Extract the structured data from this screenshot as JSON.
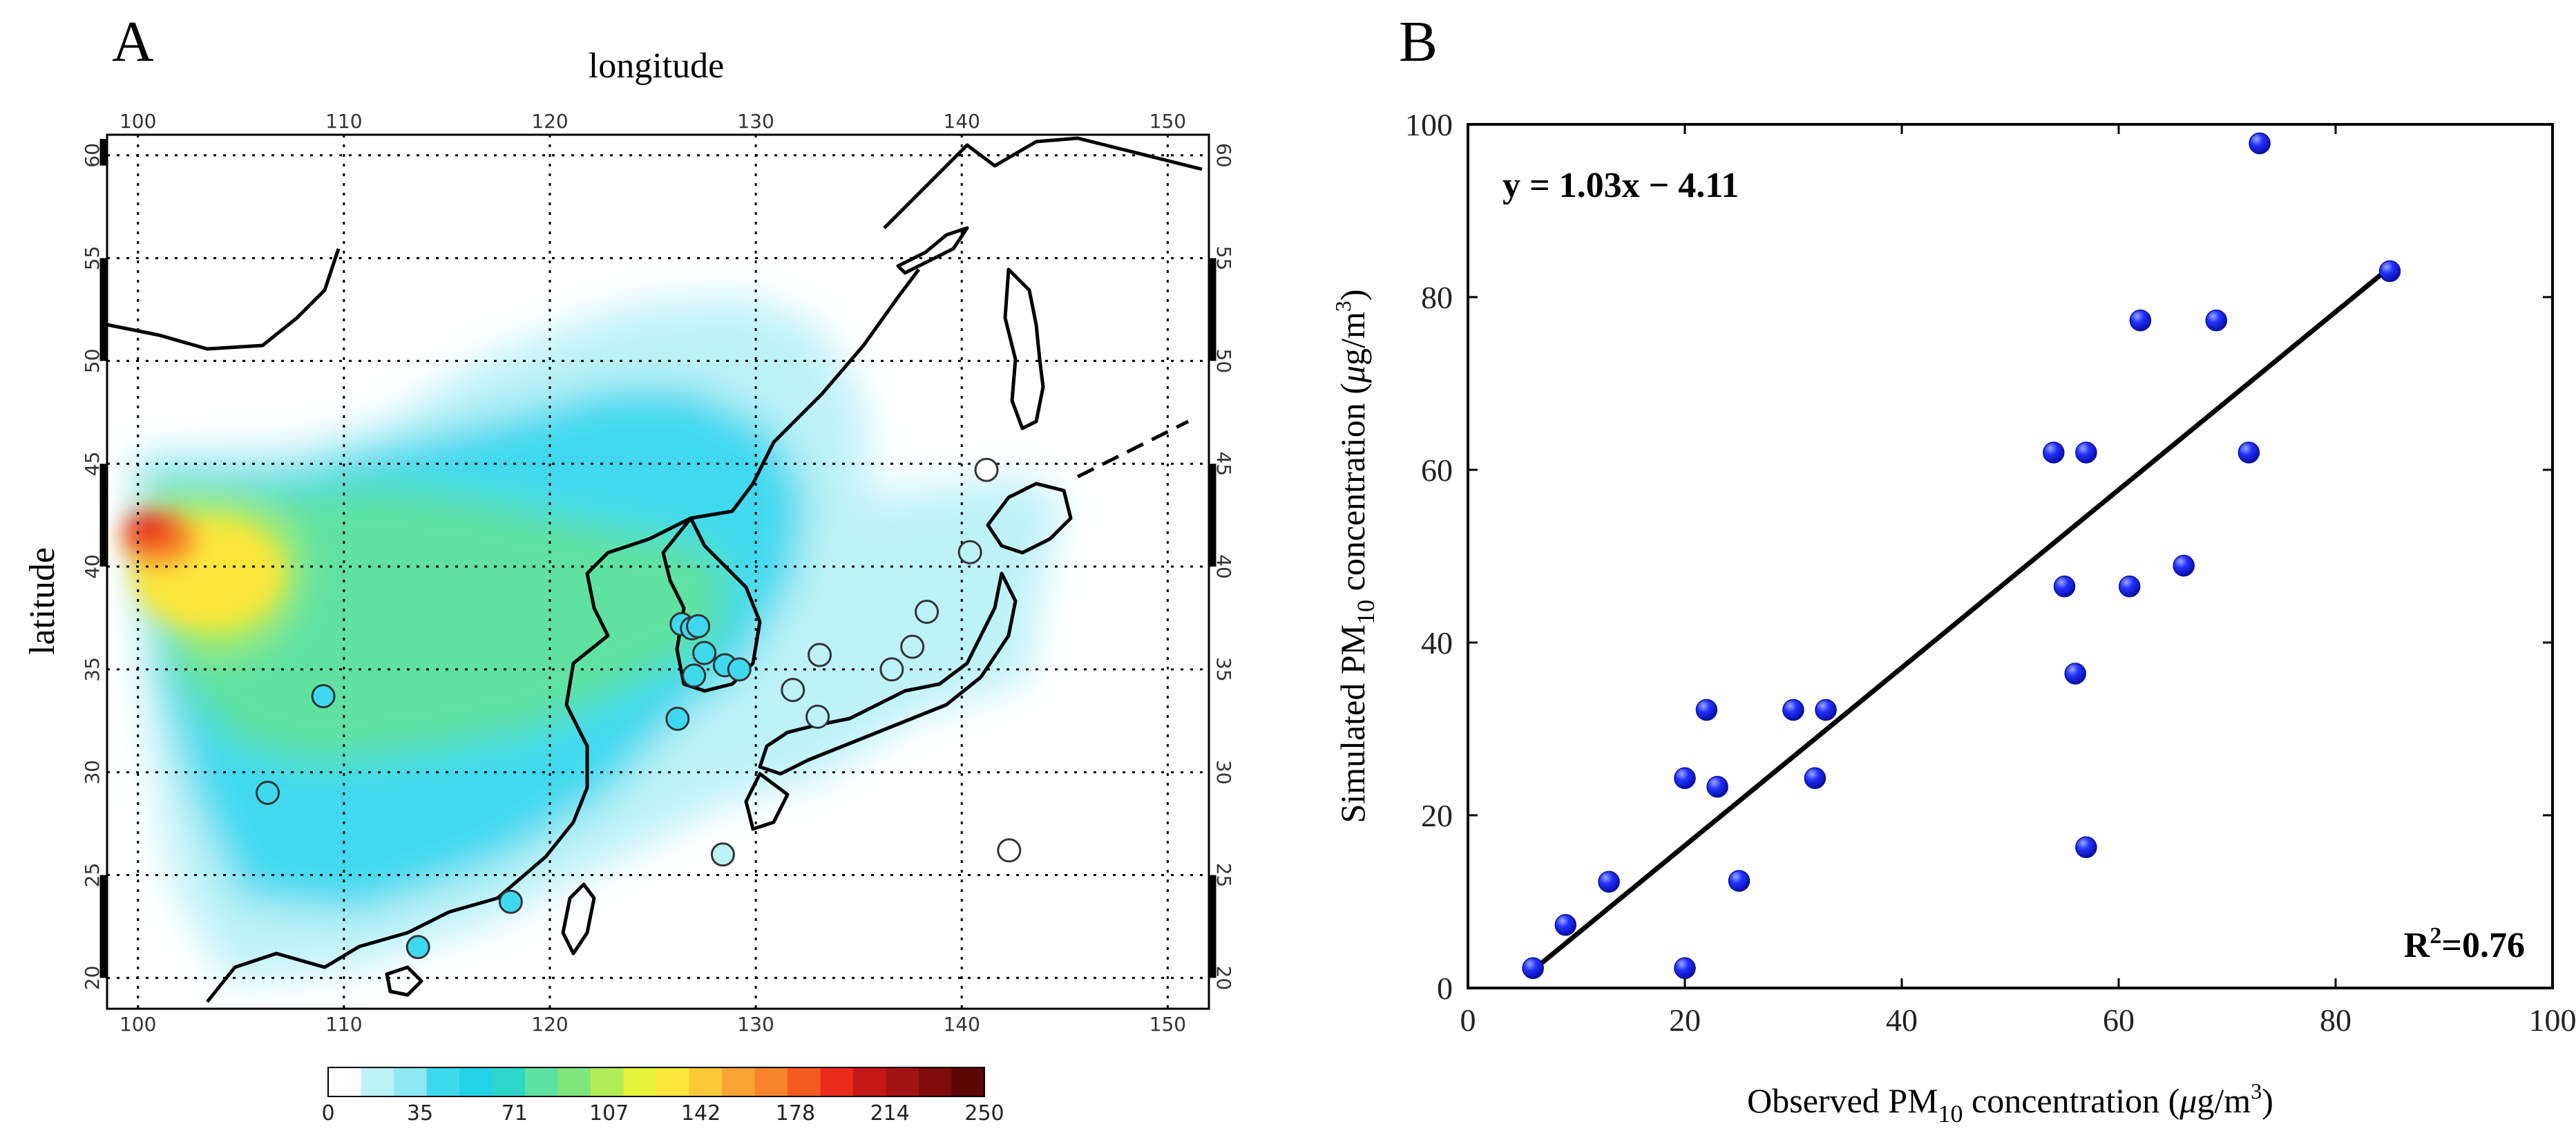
{
  "panel_a": {
    "label": "A",
    "top_axis_label": "longitude",
    "left_axis_label": "latitude",
    "lon_ticks": [
      "100",
      "110",
      "120",
      "130",
      "140",
      "150"
    ],
    "lat_ticks": [
      "20",
      "25",
      "30",
      "35",
      "40",
      "45",
      "50",
      "55",
      "60"
    ],
    "colorbar_ticks": [
      "0",
      "35",
      "71",
      "107",
      "142",
      "178",
      "214",
      "250"
    ],
    "colorbar_colors": [
      "#ffffff",
      "#bdf2f7",
      "#8ee8f4",
      "#3fd9ef",
      "#22d3e8",
      "#2ed6c9",
      "#5ee2a1",
      "#80e67c",
      "#b1ee57",
      "#e4f23a",
      "#fbe53a",
      "#fbc93a",
      "#f9a334",
      "#f7832b",
      "#f25a22",
      "#ea2b1c",
      "#c51717",
      "#a31212",
      "#7f0b0b",
      "#5c0606"
    ]
  },
  "panel_b": {
    "label": "B"
  },
  "chart_data": [
    {
      "type": "map",
      "title": "",
      "xlabel": "longitude",
      "ylabel": "latitude",
      "xlim": [
        98.5,
        152
      ],
      "ylim": [
        18.5,
        61
      ],
      "colorbar": {
        "min": 0,
        "max": 250,
        "ticks": [
          0,
          35,
          71,
          107,
          142,
          178,
          214,
          250
        ]
      },
      "stations": [
        {
          "lon": 109,
          "lat": 33.7,
          "fill": "#3fd9ef"
        },
        {
          "lon": 106.3,
          "lat": 29.0,
          "fill": "#3fd9ef"
        },
        {
          "lon": 113.6,
          "lat": 21.5,
          "fill": "#3fd9ef"
        },
        {
          "lon": 118.1,
          "lat": 23.7,
          "fill": "#3fd9ef"
        },
        {
          "lon": 126.2,
          "lat": 32.6,
          "fill": "#3fd9ef"
        },
        {
          "lon": 126.4,
          "lat": 37.2,
          "fill": "#3fd9ef"
        },
        {
          "lon": 126.9,
          "lat": 37.0,
          "fill": "#3fd9ef"
        },
        {
          "lon": 127.2,
          "lat": 37.1,
          "fill": "#3fd9ef"
        },
        {
          "lon": 127.5,
          "lat": 35.8,
          "fill": "#3fd9ef"
        },
        {
          "lon": 127.0,
          "lat": 34.7,
          "fill": "#3fd9ef"
        },
        {
          "lon": 128.5,
          "lat": 35.2,
          "fill": "#3fd9ef"
        },
        {
          "lon": 129.2,
          "lat": 35.0,
          "fill": "#3fd9ef"
        },
        {
          "lon": 131.8,
          "lat": 34.0,
          "fill": "#bdf2f7"
        },
        {
          "lon": 133.1,
          "lat": 35.7,
          "fill": "#bdf2f7"
        },
        {
          "lon": 133.0,
          "lat": 32.7,
          "fill": "#bdf2f7"
        },
        {
          "lon": 136.6,
          "lat": 35.0,
          "fill": "#bdf2f7"
        },
        {
          "lon": 137.6,
          "lat": 36.1,
          "fill": "#bdf2f7"
        },
        {
          "lon": 138.3,
          "lat": 37.8,
          "fill": "#bdf2f7"
        },
        {
          "lon": 140.4,
          "lat": 40.7,
          "fill": "#bdf2f7"
        },
        {
          "lon": 141.2,
          "lat": 44.7,
          "fill": "#ffffff"
        },
        {
          "lon": 128.4,
          "lat": 26.0,
          "fill": "#bdf2f7"
        },
        {
          "lon": 142.3,
          "lat": 26.2,
          "fill": "#ffffff"
        }
      ]
    },
    {
      "type": "scatter",
      "title": "",
      "xlabel_main": "Observed PM",
      "xlabel_sub": "10",
      "xlabel_rest": " concentration (",
      "unit_mu": "μ",
      "unit_rest": "g/m",
      "unit_sup": "3",
      "unit_close": ")",
      "ylabel_main": "Simulated PM",
      "ylabel_sub": "10",
      "ylabel_rest": " concentration (",
      "xlim": [
        0,
        100
      ],
      "ylim": [
        0,
        100
      ],
      "xticks": [
        0,
        20,
        40,
        60,
        80,
        100
      ],
      "yticks": [
        0,
        20,
        40,
        60,
        80,
        100
      ],
      "equation": "y = 1.03x − 4.11",
      "r2_prefix": "R",
      "r2_sup": "2",
      "r2_value": "=0.76",
      "fit": {
        "slope": 1.03,
        "intercept": -4.11,
        "x_range": [
          6,
          85
        ]
      },
      "points": [
        [
          6,
          2.3
        ],
        [
          9,
          7.3
        ],
        [
          13,
          12.3
        ],
        [
          20,
          2.3
        ],
        [
          20,
          24.3
        ],
        [
          22,
          32.2
        ],
        [
          23,
          23.3
        ],
        [
          25,
          12.4
        ],
        [
          30,
          32.2
        ],
        [
          32,
          24.3
        ],
        [
          33,
          32.2
        ],
        [
          54,
          62
        ],
        [
          55,
          46.5
        ],
        [
          56,
          36.4
        ],
        [
          57,
          62
        ],
        [
          57,
          16.3
        ],
        [
          61,
          46.5
        ],
        [
          62,
          77.3
        ],
        [
          66,
          48.9
        ],
        [
          69,
          77.3
        ],
        [
          72,
          62
        ],
        [
          73,
          97.8
        ],
        [
          85,
          83
        ]
      ]
    }
  ]
}
